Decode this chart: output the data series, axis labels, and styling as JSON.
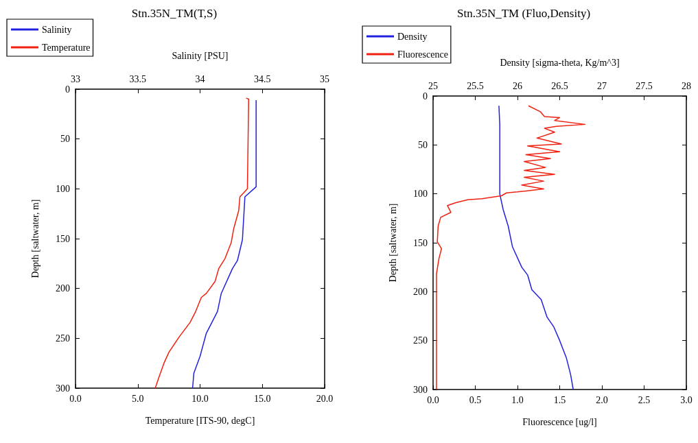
{
  "chart_data": [
    {
      "type": "line",
      "title": "Stn.35N_TM(T,S)",
      "xlabel": "Temperature [ITS-90, degC]",
      "x2label": "Salinity [PSU]",
      "ylabel": "Depth [saltwater, m]",
      "xlim": [
        0,
        20
      ],
      "xticks": [
        {
          "value": 0,
          "label": "0.0"
        },
        {
          "value": 5,
          "label": "5.0"
        },
        {
          "value": 10,
          "label": "10.0"
        },
        {
          "value": 15,
          "label": "15.0"
        },
        {
          "value": 20,
          "label": "20.0"
        }
      ],
      "x2lim": [
        33,
        35
      ],
      "x2ticks": [
        33,
        33.5,
        34,
        34.5,
        35
      ],
      "ylim": [
        300,
        0
      ],
      "yticks": [
        0,
        50,
        100,
        150,
        200,
        250,
        300
      ],
      "grid": false,
      "legend": "top left",
      "marker": "none",
      "series": [
        {
          "name": "Salinity",
          "color": "#2020e0",
          "axis": "x2",
          "x": [
            34.45,
            34.45,
            34.36,
            34.34,
            34.3,
            34.26,
            34.17,
            34.14,
            34.05,
            34.0,
            33.95,
            33.94
          ],
          "values": [
            11,
            98,
            108,
            151,
            172,
            180,
            205,
            223,
            245,
            268,
            285,
            300
          ]
        },
        {
          "name": "Temperature",
          "color": "#f02010",
          "x": [
            13.7,
            13.9,
            13.8,
            13.2,
            13.1,
            12.7,
            12.5,
            12.0,
            11.5,
            11.2,
            10.5,
            10.1,
            9.65,
            9.2,
            8.3,
            7.5,
            7.1,
            6.7,
            6.4
          ],
          "values": [
            9,
            10,
            100,
            108,
            122,
            140,
            154,
            170,
            180,
            193,
            205,
            209,
            223,
            234,
            249,
            264,
            275,
            289,
            300
          ]
        }
      ]
    },
    {
      "type": "line",
      "title": "Stn.35N_TM (Fluo,Density)",
      "xlabel": "Fluorescence [ug/l]",
      "x2label": "Density [sigma-theta, Kg/m^3]",
      "ylabel": "Depth [saltwater, m]",
      "xlim": [
        0,
        3
      ],
      "xticks": [
        {
          "value": 0,
          "label": "0.0"
        },
        {
          "value": 0.5,
          "label": "0.5"
        },
        {
          "value": 1,
          "label": "1.0"
        },
        {
          "value": 1.5,
          "label": "1.5"
        },
        {
          "value": 2,
          "label": "2.0"
        },
        {
          "value": 2.5,
          "label": "2.5"
        },
        {
          "value": 3,
          "label": "3.0"
        }
      ],
      "x2lim": [
        25,
        28
      ],
      "x2ticks": [
        25,
        25.5,
        26,
        26.5,
        27,
        27.5,
        28
      ],
      "ylim": [
        300,
        0
      ],
      "yticks": [
        0,
        50,
        100,
        150,
        200,
        250,
        300
      ],
      "grid": false,
      "legend": "top left",
      "marker": "none",
      "series": [
        {
          "name": "Density",
          "color": "#2020e0",
          "axis": "x2",
          "x": [
            25.78,
            25.79,
            25.79,
            25.83,
            25.89,
            25.94,
            26.05,
            26.12,
            26.17,
            26.28,
            26.35,
            26.43,
            26.5,
            26.58,
            26.63,
            26.66
          ],
          "values": [
            10,
            29,
            100,
            116,
            133,
            154,
            175,
            183,
            198,
            208,
            226,
            236,
            250,
            268,
            285,
            300
          ]
        },
        {
          "name": "Fluorescence",
          "color": "#f02010",
          "x": [
            1.13,
            1.27,
            1.32,
            1.5,
            1.44,
            1.8,
            1.46,
            1.32,
            1.44,
            1.23,
            1.52,
            1.12,
            1.5,
            1.1,
            1.39,
            1.08,
            1.33,
            1.08,
            1.44,
            1.08,
            1.31,
            1.05,
            1.31,
            1.0,
            0.87,
            0.81,
            0.58,
            0.41,
            0.27,
            0.17,
            0.2,
            0.21,
            0.09,
            0.06,
            0.05,
            0.1,
            0.07,
            0.04,
            0.04
          ],
          "values": [
            10,
            16,
            21,
            22,
            25,
            29,
            31,
            33,
            37,
            43,
            49,
            51,
            57,
            60,
            64,
            67,
            73,
            76,
            80,
            83,
            87,
            91,
            95,
            98,
            99,
            102,
            105,
            106,
            109,
            112,
            117,
            119,
            124,
            133,
            149,
            156,
            166,
            182,
            300
          ]
        }
      ]
    }
  ]
}
